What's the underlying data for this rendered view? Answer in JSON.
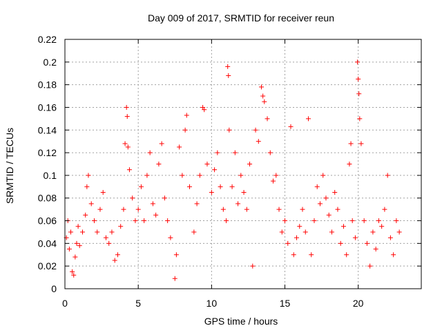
{
  "chart_data": {
    "type": "scatter",
    "title": "Day 009 of 2017, SRMTID for receiver reun",
    "xlabel": "GPS time / hours",
    "ylabel": "SRMTID / TECUs",
    "xlim": [
      0,
      24.3
    ],
    "ylim": [
      0,
      0.22
    ],
    "xticks": [
      0,
      5,
      10,
      15,
      20
    ],
    "yticks": [
      0,
      0.02,
      0.04,
      0.06,
      0.08,
      0.1,
      0.12,
      0.14,
      0.16,
      0.18,
      0.2,
      0.22
    ],
    "xtick_labels": [
      "0",
      "5",
      "10",
      "15",
      "20"
    ],
    "ytick_labels": [
      "0",
      "0.02",
      "0.04",
      "0.06",
      "0.08",
      "0.1",
      "0.12",
      "0.14",
      "0.16",
      "0.18",
      "0.2",
      "0.22"
    ],
    "grid": true,
    "marker": "plus",
    "color": "#ff0000",
    "series": [
      {
        "name": "SRMTID",
        "x_range": [
          0,
          23
        ],
        "typical_range": [
          0.02,
          0.12
        ],
        "points": [
          [
            0.1,
            0.045
          ],
          [
            0.2,
            0.06
          ],
          [
            0.3,
            0.035
          ],
          [
            0.4,
            0.05
          ],
          [
            0.5,
            0.015
          ],
          [
            0.6,
            0.012
          ],
          [
            0.7,
            0.028
          ],
          [
            0.8,
            0.04
          ],
          [
            0.9,
            0.055
          ],
          [
            1.0,
            0.038
          ],
          [
            1.2,
            0.05
          ],
          [
            1.4,
            0.065
          ],
          [
            1.5,
            0.09
          ],
          [
            1.6,
            0.1
          ],
          [
            1.8,
            0.075
          ],
          [
            2.0,
            0.06
          ],
          [
            2.2,
            0.05
          ],
          [
            2.4,
            0.07
          ],
          [
            2.6,
            0.085
          ],
          [
            2.8,
            0.045
          ],
          [
            3.0,
            0.04
          ],
          [
            3.2,
            0.05
          ],
          [
            3.4,
            0.025
          ],
          [
            3.6,
            0.03
          ],
          [
            3.8,
            0.055
          ],
          [
            4.0,
            0.07
          ],
          [
            4.1,
            0.128
          ],
          [
            4.2,
            0.16
          ],
          [
            4.25,
            0.152
          ],
          [
            4.3,
            0.125
          ],
          [
            4.4,
            0.105
          ],
          [
            4.6,
            0.08
          ],
          [
            4.8,
            0.06
          ],
          [
            5.0,
            0.07
          ],
          [
            5.2,
            0.09
          ],
          [
            5.4,
            0.06
          ],
          [
            5.6,
            0.1
          ],
          [
            5.8,
            0.12
          ],
          [
            6.0,
            0.075
          ],
          [
            6.2,
            0.065
          ],
          [
            6.4,
            0.11
          ],
          [
            6.6,
            0.128
          ],
          [
            6.8,
            0.08
          ],
          [
            7.0,
            0.06
          ],
          [
            7.2,
            0.045
          ],
          [
            7.5,
            0.009
          ],
          [
            7.6,
            0.03
          ],
          [
            7.8,
            0.125
          ],
          [
            8.0,
            0.1
          ],
          [
            8.2,
            0.14
          ],
          [
            8.3,
            0.153
          ],
          [
            8.5,
            0.09
          ],
          [
            8.8,
            0.05
          ],
          [
            9.0,
            0.075
          ],
          [
            9.2,
            0.1
          ],
          [
            9.4,
            0.16
          ],
          [
            9.5,
            0.158
          ],
          [
            9.7,
            0.11
          ],
          [
            10.0,
            0.085
          ],
          [
            10.2,
            0.105
          ],
          [
            10.4,
            0.12
          ],
          [
            10.6,
            0.09
          ],
          [
            10.8,
            0.07
          ],
          [
            11.0,
            0.06
          ],
          [
            11.1,
            0.196
          ],
          [
            11.15,
            0.188
          ],
          [
            11.2,
            0.14
          ],
          [
            11.4,
            0.09
          ],
          [
            11.6,
            0.12
          ],
          [
            11.8,
            0.075
          ],
          [
            12.0,
            0.1
          ],
          [
            12.2,
            0.085
          ],
          [
            12.4,
            0.07
          ],
          [
            12.6,
            0.11
          ],
          [
            12.8,
            0.02
          ],
          [
            13.0,
            0.14
          ],
          [
            13.2,
            0.13
          ],
          [
            13.4,
            0.178
          ],
          [
            13.5,
            0.17
          ],
          [
            13.6,
            0.165
          ],
          [
            13.8,
            0.15
          ],
          [
            14.0,
            0.12
          ],
          [
            14.2,
            0.095
          ],
          [
            14.4,
            0.1
          ],
          [
            14.6,
            0.07
          ],
          [
            14.8,
            0.05
          ],
          [
            15.0,
            0.06
          ],
          [
            15.2,
            0.04
          ],
          [
            15.4,
            0.143
          ],
          [
            15.6,
            0.03
          ],
          [
            15.8,
            0.045
          ],
          [
            16.0,
            0.055
          ],
          [
            16.2,
            0.07
          ],
          [
            16.4,
            0.05
          ],
          [
            16.6,
            0.15
          ],
          [
            16.8,
            0.03
          ],
          [
            17.0,
            0.06
          ],
          [
            17.2,
            0.09
          ],
          [
            17.4,
            0.075
          ],
          [
            17.6,
            0.1
          ],
          [
            17.8,
            0.08
          ],
          [
            18.0,
            0.065
          ],
          [
            18.2,
            0.05
          ],
          [
            18.4,
            0.085
          ],
          [
            18.6,
            0.07
          ],
          [
            18.8,
            0.04
          ],
          [
            19.0,
            0.055
          ],
          [
            19.2,
            0.03
          ],
          [
            19.4,
            0.11
          ],
          [
            19.5,
            0.128
          ],
          [
            19.6,
            0.06
          ],
          [
            19.8,
            0.045
          ],
          [
            19.95,
            0.2
          ],
          [
            20.0,
            0.185
          ],
          [
            20.05,
            0.172
          ],
          [
            20.1,
            0.15
          ],
          [
            20.2,
            0.128
          ],
          [
            20.4,
            0.06
          ],
          [
            20.6,
            0.04
          ],
          [
            20.8,
            0.02
          ],
          [
            21.0,
            0.05
          ],
          [
            21.2,
            0.035
          ],
          [
            21.4,
            0.06
          ],
          [
            21.6,
            0.055
          ],
          [
            21.8,
            0.07
          ],
          [
            22.0,
            0.1
          ],
          [
            22.2,
            0.045
          ],
          [
            22.4,
            0.03
          ],
          [
            22.6,
            0.06
          ],
          [
            22.8,
            0.05
          ]
        ]
      }
    ]
  }
}
